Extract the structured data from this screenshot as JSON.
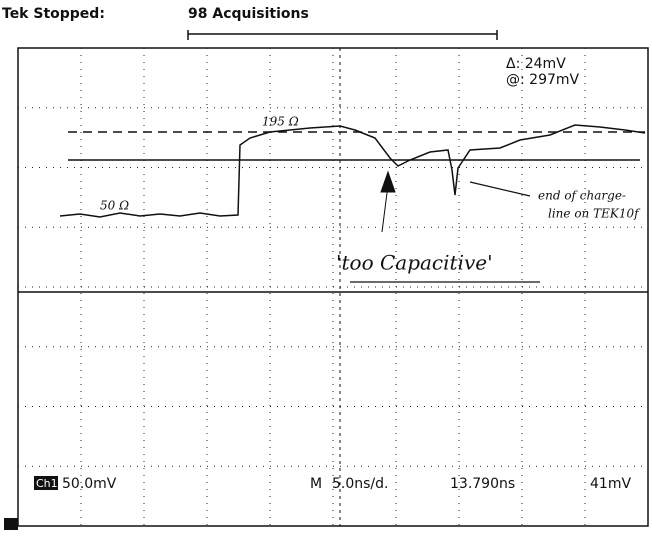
{
  "header": {
    "status": "Tek Stopped:",
    "acquisitions": "98 Acquisitions"
  },
  "readouts": {
    "delta": "Δ: 24mV",
    "at": "@: 297mV"
  },
  "annotations": {
    "high_impedance": "195 Ω",
    "low_impedance": "50 Ω",
    "end_note_line1": "end of charge-",
    "end_note_line2": "line on TEK10f",
    "capacitive": "'too Capacitive'"
  },
  "footer": {
    "channel": "Ch1",
    "volts_per_div": "50.0mV",
    "mode": "M",
    "time_per_div": "5.0ns/d.",
    "position": "13.790ns",
    "trigger": "41mV"
  }
}
